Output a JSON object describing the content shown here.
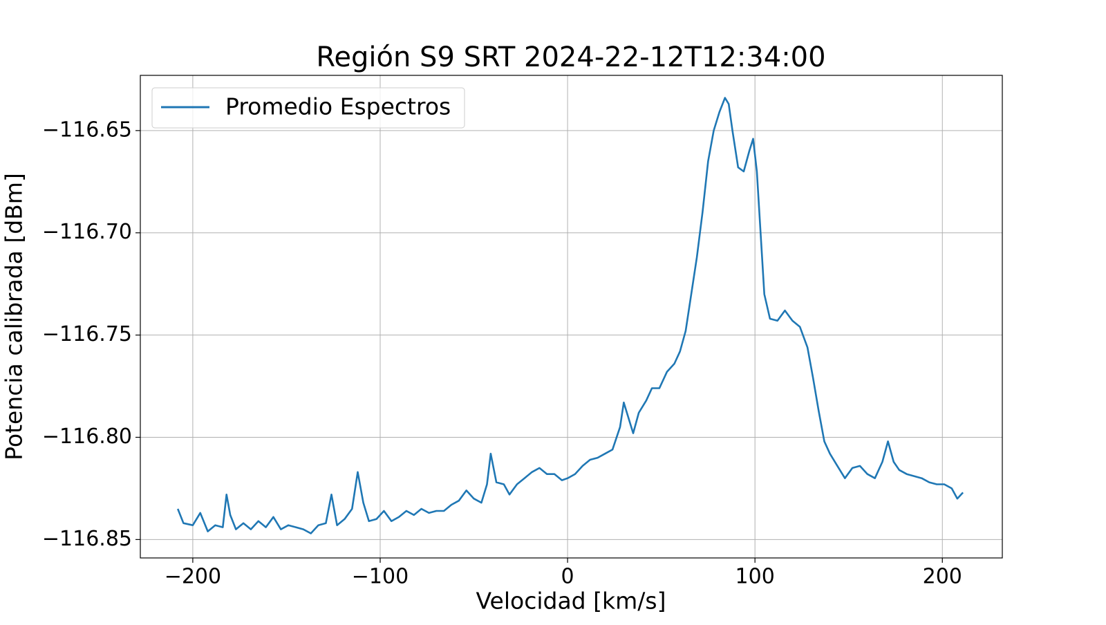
{
  "chart_data": {
    "type": "line",
    "title": "Región S9 SRT 2024-22-12T12:34:00",
    "x_label": "Velocidad [km/s]",
    "y_label": "Potencia calibrada [dBm]",
    "xlim": [
      -228,
      232
    ],
    "ylim": [
      -116.859,
      -116.623
    ],
    "xticks": [
      {
        "value": -200,
        "label": "−200"
      },
      {
        "value": -100,
        "label": "−100"
      },
      0,
      100,
      200
    ],
    "yticks": [
      {
        "value": -116.65,
        "label": "−116.65"
      },
      {
        "value": -116.7,
        "label": "−116.70"
      },
      {
        "value": -116.75,
        "label": "−116.75"
      },
      {
        "value": -116.8,
        "label": "−116.80"
      },
      {
        "value": -116.85,
        "label": "−116.85"
      }
    ],
    "grid": true,
    "legend": "upper left",
    "x": [
      -208,
      -205,
      -200,
      -196,
      -192,
      -188,
      -184,
      -182,
      -180,
      -177,
      -173,
      -169,
      -165,
      -161,
      -157,
      -153,
      -149,
      -145,
      -141,
      -137,
      -133,
      -129,
      -126,
      -123,
      -119,
      -115,
      -112,
      -109,
      -106,
      -102,
      -98,
      -94,
      -90,
      -86,
      -82,
      -78,
      -74,
      -70,
      -66,
      -62,
      -58,
      -54,
      -50,
      -46,
      -43,
      -41,
      -38,
      -34,
      -31,
      -27,
      -23,
      -19,
      -15,
      -11,
      -7,
      -3,
      0,
      4,
      8,
      12,
      16,
      20,
      24,
      28,
      30,
      33,
      35,
      38,
      42,
      45,
      49,
      53,
      57,
      60,
      63,
      66,
      69,
      72,
      75,
      78,
      81,
      84,
      86,
      88,
      91,
      94,
      97,
      99,
      101,
      103,
      105,
      108,
      112,
      116,
      120,
      124,
      128,
      131,
      134,
      137,
      140,
      144,
      148,
      152,
      156,
      160,
      164,
      168,
      171,
      174,
      177,
      181,
      185,
      189,
      193,
      197,
      201,
      205,
      208,
      211
    ],
    "series": [
      {
        "name": "Promedio Espectros",
        "color": "#1f77b4",
        "values": [
          -116.835,
          -116.842,
          -116.843,
          -116.837,
          -116.846,
          -116.843,
          -116.844,
          -116.828,
          -116.838,
          -116.845,
          -116.842,
          -116.845,
          -116.841,
          -116.844,
          -116.839,
          -116.845,
          -116.843,
          -116.844,
          -116.845,
          -116.847,
          -116.843,
          -116.842,
          -116.828,
          -116.843,
          -116.84,
          -116.835,
          -116.817,
          -116.832,
          -116.841,
          -116.84,
          -116.836,
          -116.841,
          -116.839,
          -116.836,
          -116.838,
          -116.835,
          -116.837,
          -116.836,
          -116.836,
          -116.833,
          -116.831,
          -116.826,
          -116.83,
          -116.832,
          -116.823,
          -116.808,
          -116.822,
          -116.823,
          -116.828,
          -116.823,
          -116.82,
          -116.817,
          -116.815,
          -116.818,
          -116.818,
          -116.821,
          -116.82,
          -116.818,
          -116.814,
          -116.811,
          -116.81,
          -116.808,
          -116.806,
          -116.795,
          -116.783,
          -116.792,
          -116.798,
          -116.788,
          -116.782,
          -116.776,
          -116.776,
          -116.768,
          -116.764,
          -116.758,
          -116.748,
          -116.73,
          -116.712,
          -116.69,
          -116.665,
          -116.65,
          -116.641,
          -116.634,
          -116.637,
          -116.65,
          -116.668,
          -116.67,
          -116.66,
          -116.654,
          -116.67,
          -116.7,
          -116.73,
          -116.742,
          -116.743,
          -116.738,
          -116.743,
          -116.746,
          -116.756,
          -116.771,
          -116.787,
          -116.802,
          -116.808,
          -116.814,
          -116.82,
          -116.815,
          -116.814,
          -116.818,
          -116.82,
          -116.812,
          -116.802,
          -116.812,
          -116.816,
          -116.818,
          -116.819,
          -116.82,
          -116.822,
          -116.823,
          -116.823,
          -116.825,
          -116.83,
          -116.827
        ]
      }
    ]
  }
}
